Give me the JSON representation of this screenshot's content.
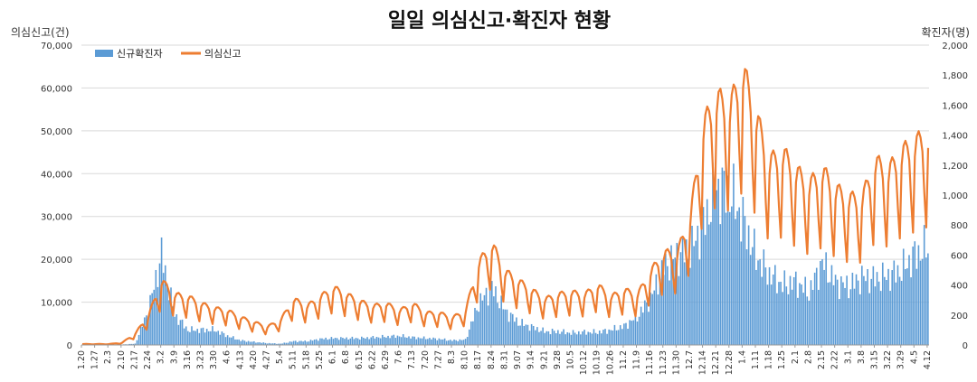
{
  "chart_data": {
    "type": "bar+line",
    "title": "일일 의심신고·확진자 현황",
    "y_left_label": "의심신고(건)",
    "y_right_label": "확진자(명)",
    "y_left_lim": [
      0,
      70000
    ],
    "y_right_lim": [
      0,
      2000
    ],
    "y_left_ticks": [
      "0",
      "10,000",
      "20,000",
      "30,000",
      "40,000",
      "50,000",
      "60,000",
      "70,000"
    ],
    "y_right_ticks": [
      "0",
      "200",
      "400",
      "600",
      "800",
      "1,000",
      "1,200",
      "1,400",
      "1,600",
      "1,800",
      "2,000"
    ],
    "x_ticks": [
      "1.20",
      "1.27",
      "2.3",
      "2.10",
      "2.17",
      "2.24",
      "3.2",
      "3.9",
      "3.16",
      "3.23",
      "3.30",
      "4.6",
      "4.13",
      "4.20",
      "4.27",
      "5.4",
      "5.11",
      "5.18",
      "5.25",
      "6.1",
      "6.8",
      "6.15",
      "6.22",
      "6.29",
      "7.6",
      "7.13",
      "7.20",
      "7.27",
      "8.3",
      "8.10",
      "8.17",
      "8.24",
      "8.31",
      "9.07",
      "9.14",
      "9.21",
      "9.28",
      "10.5",
      "10.12",
      "10.19",
      "10.26",
      "11.2",
      "11.9",
      "11.16",
      "11.23",
      "11.30",
      "12.7",
      "12.14",
      "12.21",
      "12.28",
      "1.4",
      "1.11",
      "1.18",
      "1.25",
      "2.1",
      "2.8",
      "2.15",
      "2.22",
      "3.1",
      "3.8",
      "3.15",
      "3.22",
      "3.29",
      "4.5",
      "4.12"
    ],
    "series": [
      {
        "name": "신규확진자",
        "type": "bar",
        "axis": "right",
        "color": "#5B9BD5",
        "weekly_values": [
          1,
          1,
          2,
          3,
          8,
          230,
          600,
          200,
          100,
          100,
          100,
          60,
          30,
          20,
          12,
          8,
          25,
          25,
          40,
          45,
          45,
          45,
          50,
          55,
          60,
          50,
          45,
          40,
          30,
          35,
          280,
          380,
          230,
          150,
          120,
          90,
          90,
          80,
          85,
          85,
          100,
          125,
          190,
          310,
          520,
          600,
          630,
          800,
          1050,
          1020,
          830,
          590,
          470,
          400,
          420,
          350,
          550,
          420,
          390,
          450,
          440,
          460,
          500,
          600,
          650
        ]
      },
      {
        "name": "의심신고",
        "type": "line",
        "axis": "left",
        "color": "#ED7D31",
        "weekly_values": [
          200,
          200,
          200,
          500,
          2500,
          6500,
          14000,
          11000,
          10500,
          9000,
          8000,
          7500,
          6000,
          5000,
          4000,
          5500,
          10000,
          8500,
          10500,
          12500,
          11000,
          9500,
          8500,
          9000,
          7500,
          9000,
          7000,
          7000,
          6000,
          7500,
          18000,
          22000,
          16000,
          14000,
          12000,
          10000,
          11000,
          11500,
          11000,
          13000,
          10500,
          12000,
          11000,
          16000,
          20000,
          20000,
          28000,
          48000,
          54000,
          52000,
          60000,
          50000,
          40000,
          42000,
          38000,
          35000,
          38000,
          34000,
          32000,
          32000,
          40000,
          38000,
          42000,
          44000,
          46000
        ]
      }
    ],
    "legend": [
      "신규확진자",
      "의심신고"
    ]
  }
}
